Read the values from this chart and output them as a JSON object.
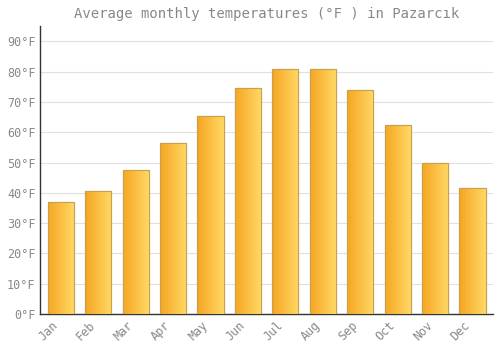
{
  "title": "Average monthly temperatures (°F ) in Pazarcık",
  "months": [
    "Jan",
    "Feb",
    "Mar",
    "Apr",
    "May",
    "Jun",
    "Jul",
    "Aug",
    "Sep",
    "Oct",
    "Nov",
    "Dec"
  ],
  "values": [
    37,
    40.5,
    47.5,
    56.5,
    65.5,
    74.5,
    81,
    81,
    74,
    62.5,
    50,
    41.5
  ],
  "bar_color_left": "#F5A623",
  "bar_color_right": "#FFD966",
  "bar_edge_color": "#C8A050",
  "background_color": "#FFFFFF",
  "grid_color": "#E0E0E0",
  "yticks": [
    0,
    10,
    20,
    30,
    40,
    50,
    60,
    70,
    80,
    90
  ],
  "ylim": [
    0,
    95
  ],
  "title_fontsize": 10,
  "tick_fontsize": 8.5,
  "font_color": "#888888",
  "spine_color": "#333333"
}
